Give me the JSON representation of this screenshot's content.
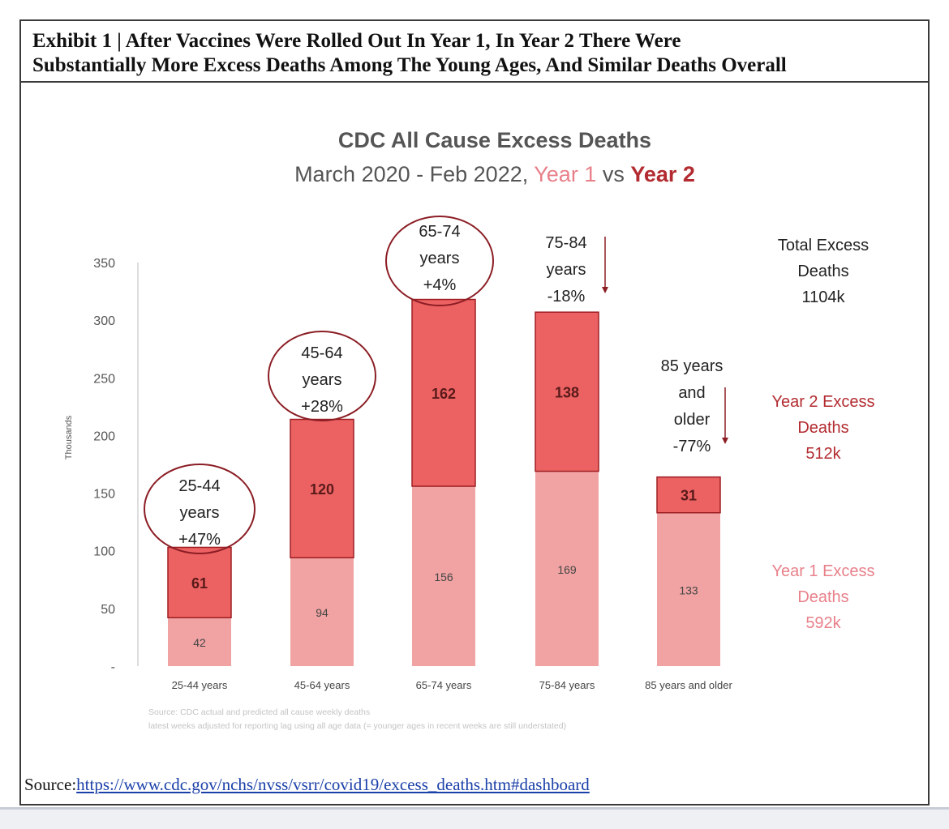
{
  "exhibit": {
    "title_line1": "Exhibit 1 | After Vaccines Were Rolled Out In Year 1, In Year 2 There Were",
    "title_line2": "Substantially More Excess Deaths Among The Young Ages, And Similar Deaths Overall",
    "source_prefix": "Source:",
    "source_link": "https://www.cdc.gov/nchs/nvss/vsrr/covid19/excess_deaths.htm#dashboard"
  },
  "colors": {
    "year1": "#f1a3a3",
    "year2": "#ec6262",
    "year2_border": "#9e1f24",
    "year1_text": "#e8808a",
    "year2_text": "#b22b30",
    "axis_text": "#555555",
    "annotation": "#8b1d24"
  },
  "chart_data": {
    "type": "bar",
    "stacked": true,
    "title": "CDC All Cause Excess Deaths",
    "subtitle_prefix": "March 2020 - Feb 2022, ",
    "subtitle_year1": "Year 1",
    "subtitle_vs": " vs ",
    "subtitle_year2": "Year 2",
    "ylabel": "Thousands",
    "ylim": [
      0,
      350
    ],
    "yticks": [
      {
        "value": 0,
        "label": "-"
      },
      {
        "value": 50,
        "label": "50"
      },
      {
        "value": 100,
        "label": "100"
      },
      {
        "value": 150,
        "label": "150"
      },
      {
        "value": 200,
        "label": "200"
      },
      {
        "value": 250,
        "label": "250"
      },
      {
        "value": 300,
        "label": "300"
      },
      {
        "value": 350,
        "label": "350"
      }
    ],
    "categories": [
      "25-44 years",
      "45-64 years",
      "65-74 years",
      "75-84 years",
      "85 years and older"
    ],
    "series": [
      {
        "name": "Year 1 Excess Deaths",
        "values": [
          42,
          94,
          156,
          169,
          133
        ]
      },
      {
        "name": "Year 2 Excess Deaths",
        "values": [
          61,
          120,
          162,
          138,
          31
        ]
      }
    ],
    "annotations": [
      {
        "lines": [
          "25-44",
          "years",
          "+47%"
        ],
        "style": "circle"
      },
      {
        "lines": [
          "45-64",
          "years",
          "+28%"
        ],
        "style": "circle"
      },
      {
        "lines": [
          "65-74",
          "years",
          "+4%"
        ],
        "style": "circle"
      },
      {
        "lines": [
          "75-84",
          "years",
          "-18%"
        ],
        "style": "arrow"
      },
      {
        "lines": [
          "85 years",
          "and",
          "older",
          "-77%"
        ],
        "style": "arrow"
      }
    ],
    "totals": {
      "total": [
        "Total Excess",
        "Deaths",
        "1104k"
      ],
      "year2": [
        "Year 2 Excess",
        "Deaths",
        "512k"
      ],
      "year1": [
        "Year 1 Excess",
        "Deaths",
        "592k"
      ]
    },
    "source_note": [
      "Source: CDC actual and predicted all cause weekly deaths",
      "latest weeks adjusted for reporting lag using all age data (= younger ages in recent weeks are still understated)"
    ]
  }
}
